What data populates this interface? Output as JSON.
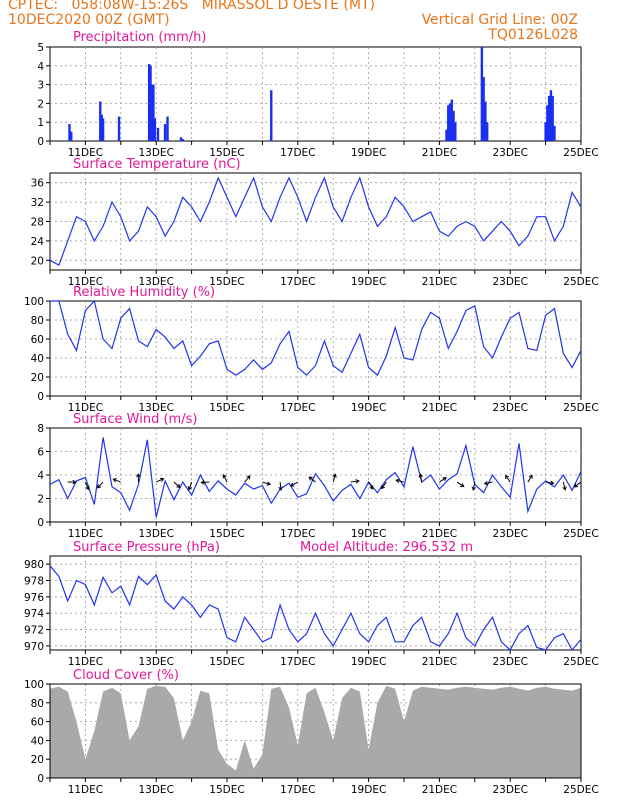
{
  "header": {
    "line1": "CPTEC:   058:08W-15:26S   MIRASSOL D OESTE (MT)",
    "date": "10DEC2020 00Z (GMT)",
    "grid_note": "Vertical Grid Line: 00Z",
    "code": "TQ0126L028"
  },
  "colors": {
    "line": "#2233ee",
    "bar": "#1a2ff0",
    "cloud": "#a9a9a9",
    "title": "#e0179a",
    "header": "#e8751a"
  },
  "chart_data": [
    {
      "type": "bar",
      "title": "Precipitation (mm/h)",
      "x_tick_labels": [
        "11DEC",
        "13DEC",
        "15DEC",
        "17DEC",
        "19DEC",
        "21DEC",
        "23DEC",
        "25DEC"
      ],
      "ylim": [
        0,
        5
      ],
      "y_ticks": [
        0,
        1,
        2,
        3,
        4,
        5
      ],
      "grid": true,
      "x_unit": "day (10DEC 00Z = 0)",
      "bars": [
        [
          0.55,
          0.9
        ],
        [
          0.6,
          0.5
        ],
        [
          1.42,
          2.1
        ],
        [
          1.46,
          1.4
        ],
        [
          1.5,
          1.2
        ],
        [
          1.95,
          1.3
        ],
        [
          2.8,
          4.1
        ],
        [
          2.84,
          4.0
        ],
        [
          2.88,
          3.0
        ],
        [
          2.92,
          3.0
        ],
        [
          2.96,
          1.2
        ],
        [
          3.05,
          0.7
        ],
        [
          3.25,
          0.9
        ],
        [
          3.32,
          1.3
        ],
        [
          3.7,
          0.2
        ],
        [
          3.75,
          0.1
        ],
        [
          6.25,
          2.7
        ],
        [
          11.2,
          0.6
        ],
        [
          11.25,
          1.9
        ],
        [
          11.3,
          2.0
        ],
        [
          11.35,
          2.2
        ],
        [
          11.4,
          1.6
        ],
        [
          11.45,
          1.0
        ],
        [
          12.2,
          5.0
        ],
        [
          12.25,
          3.4
        ],
        [
          12.3,
          2.1
        ],
        [
          12.35,
          1.0
        ],
        [
          14.0,
          1.0
        ],
        [
          14.05,
          1.9
        ],
        [
          14.1,
          2.4
        ],
        [
          14.15,
          2.7
        ],
        [
          14.2,
          2.4
        ],
        [
          14.25,
          0.8
        ]
      ]
    },
    {
      "type": "line",
      "title": "Surface Temperature (nC)",
      "x_tick_labels": [
        "11DEC",
        "13DEC",
        "15DEC",
        "17DEC",
        "19DEC",
        "21DEC",
        "23DEC",
        "25DEC"
      ],
      "ylim": [
        18,
        38
      ],
      "y_ticks": [
        20,
        24,
        28,
        32,
        36
      ],
      "grid": true,
      "x": [
        0,
        0.25,
        0.5,
        0.75,
        1,
        1.25,
        1.5,
        1.75,
        2,
        2.25,
        2.5,
        2.75,
        3,
        3.25,
        3.5,
        3.75,
        4,
        4.25,
        4.5,
        4.75,
        5,
        5.25,
        5.5,
        5.75,
        6,
        6.25,
        6.5,
        6.75,
        7,
        7.25,
        7.5,
        7.75,
        8,
        8.25,
        8.5,
        8.75,
        9,
        9.25,
        9.5,
        9.75,
        10,
        10.25,
        10.5,
        10.75,
        11,
        11.25,
        11.5,
        11.75,
        12,
        12.25,
        12.5,
        12.75,
        13,
        13.25,
        13.5,
        13.75,
        14,
        14.25,
        14.5,
        14.75,
        15
      ],
      "values": [
        20,
        19,
        24,
        29,
        28,
        24,
        27,
        32,
        29,
        24,
        26,
        31,
        29,
        25,
        28,
        33,
        31,
        28,
        32,
        37,
        33,
        29,
        33,
        37,
        31,
        28,
        33,
        37,
        33,
        28,
        33,
        37,
        31,
        28,
        33,
        37,
        31,
        27,
        29,
        33,
        31,
        28,
        29,
        30,
        26,
        25,
        27,
        28,
        27,
        24,
        26,
        28,
        26,
        23,
        25,
        29,
        29,
        24,
        27,
        34,
        31
      ]
    },
    {
      "type": "line",
      "title": "Relative Humidity (%)",
      "x_tick_labels": [
        "11DEC",
        "13DEC",
        "15DEC",
        "17DEC",
        "19DEC",
        "21DEC",
        "23DEC",
        "25DEC"
      ],
      "ylim": [
        0,
        100
      ],
      "y_ticks": [
        0,
        20,
        40,
        60,
        80,
        100
      ],
      "grid": true,
      "x": [
        0,
        0.25,
        0.5,
        0.75,
        1,
        1.25,
        1.5,
        1.75,
        2,
        2.25,
        2.5,
        2.75,
        3,
        3.25,
        3.5,
        3.75,
        4,
        4.25,
        4.5,
        4.75,
        5,
        5.25,
        5.5,
        5.75,
        6,
        6.25,
        6.5,
        6.75,
        7,
        7.25,
        7.5,
        7.75,
        8,
        8.25,
        8.5,
        8.75,
        9,
        9.25,
        9.5,
        9.75,
        10,
        10.25,
        10.5,
        10.75,
        11,
        11.25,
        11.5,
        11.75,
        12,
        12.25,
        12.5,
        12.75,
        13,
        13.25,
        13.5,
        13.75,
        14,
        14.25,
        14.5,
        14.75,
        15
      ],
      "values": [
        100,
        100,
        65,
        48,
        90,
        100,
        60,
        50,
        82,
        92,
        58,
        52,
        70,
        62,
        50,
        58,
        32,
        42,
        55,
        58,
        28,
        22,
        28,
        38,
        28,
        35,
        55,
        68,
        30,
        22,
        32,
        58,
        32,
        25,
        45,
        65,
        30,
        22,
        42,
        72,
        40,
        38,
        70,
        88,
        82,
        50,
        68,
        90,
        95,
        52,
        40,
        62,
        82,
        88,
        50,
        48,
        85,
        92,
        45,
        30,
        48
      ]
    },
    {
      "type": "line",
      "title": "Surface Wind (m/s)",
      "x_tick_labels": [
        "11DEC",
        "13DEC",
        "15DEC",
        "17DEC",
        "19DEC",
        "21DEC",
        "23DEC",
        "25DEC"
      ],
      "ylim": [
        0,
        8
      ],
      "y_ticks": [
        0,
        2,
        4,
        6,
        8
      ],
      "grid": true,
      "x": [
        0,
        0.25,
        0.5,
        0.75,
        1,
        1.25,
        1.5,
        1.75,
        2,
        2.25,
        2.5,
        2.75,
        3,
        3.25,
        3.5,
        3.75,
        4,
        4.25,
        4.5,
        4.75,
        5,
        5.25,
        5.5,
        5.75,
        6,
        6.25,
        6.5,
        6.75,
        7,
        7.25,
        7.5,
        7.75,
        8,
        8.25,
        8.5,
        8.75,
        9,
        9.25,
        9.5,
        9.75,
        10,
        10.25,
        10.5,
        10.75,
        11,
        11.25,
        11.5,
        11.75,
        12,
        12.25,
        12.5,
        12.75,
        13,
        13.25,
        13.5,
        13.75,
        14,
        14.25,
        14.5,
        14.75,
        15
      ],
      "values": [
        3.2,
        3.6,
        2.0,
        3.5,
        3.8,
        1.5,
        7.2,
        3.0,
        2.5,
        1.0,
        3.2,
        7.0,
        0.4,
        3.5,
        1.9,
        3.4,
        2.3,
        4.0,
        2.6,
        3.5,
        2.8,
        2.3,
        3.3,
        2.8,
        3.1,
        1.6,
        2.8,
        3.3,
        2.1,
        2.4,
        4.1,
        3.1,
        1.8,
        2.7,
        3.2,
        2.0,
        3.4,
        2.5,
        3.6,
        4.2,
        3.0,
        6.4,
        3.4,
        4.0,
        2.8,
        3.6,
        4.1,
        6.5,
        3.2,
        2.5,
        4.0,
        3.0,
        2.1,
        6.7,
        0.9,
        2.8,
        3.5,
        3.0,
        4.0,
        2.7,
        4.3
      ],
      "arrows_x": [
        0.5,
        1.0,
        1.5,
        2.0,
        2.5,
        3.0,
        3.5,
        4.0,
        4.5,
        5.0,
        5.5,
        6.0,
        6.5,
        7.0,
        7.5,
        8.0,
        8.5,
        9.0,
        9.5,
        10.0,
        10.5,
        11.0,
        11.5,
        12.0,
        12.5,
        13.0,
        13.5,
        14.0,
        14.5,
        15.0
      ]
    },
    {
      "type": "line",
      "title": "Surface Pressure (hPa)",
      "annotation": "Model Altitude: 296.532 m",
      "x_tick_labels": [
        "11DEC",
        "13DEC",
        "15DEC",
        "17DEC",
        "19DEC",
        "21DEC",
        "23DEC",
        "25DEC"
      ],
      "ylim": [
        969.5,
        981
      ],
      "y_ticks": [
        970,
        972,
        974,
        976,
        978,
        980
      ],
      "grid": true,
      "x": [
        0,
        0.25,
        0.5,
        0.75,
        1,
        1.25,
        1.5,
        1.75,
        2,
        2.25,
        2.5,
        2.75,
        3,
        3.25,
        3.5,
        3.75,
        4,
        4.25,
        4.5,
        4.75,
        5,
        5.25,
        5.5,
        5.75,
        6,
        6.25,
        6.5,
        6.75,
        7,
        7.25,
        7.5,
        7.75,
        8,
        8.25,
        8.5,
        8.75,
        9,
        9.25,
        9.5,
        9.75,
        10,
        10.25,
        10.5,
        10.75,
        11,
        11.25,
        11.5,
        11.75,
        12,
        12.25,
        12.5,
        12.75,
        13,
        13.25,
        13.5,
        13.75,
        14,
        14.25,
        14.5,
        14.75,
        15
      ],
      "values": [
        979.8,
        978.5,
        975.5,
        978.0,
        977.5,
        975.0,
        978.4,
        976.5,
        977.3,
        975.0,
        978.5,
        977.5,
        978.7,
        975.5,
        974.5,
        976.0,
        975.0,
        973.5,
        975.0,
        974.5,
        971.0,
        970.5,
        973.5,
        972.0,
        970.5,
        971.0,
        975.0,
        972.0,
        970.5,
        971.5,
        974.0,
        971.5,
        970.0,
        972.0,
        974.0,
        971.5,
        970.5,
        972.5,
        973.5,
        970.5,
        970.5,
        972.5,
        973.5,
        970.5,
        970.0,
        971.5,
        974.0,
        971.0,
        970.0,
        972.0,
        973.5,
        970.5,
        969.5,
        971.5,
        972.5,
        969.8,
        969.5,
        971.0,
        971.5,
        969.5,
        970.8
      ]
    },
    {
      "type": "area",
      "title": "Cloud Cover (%)",
      "x_tick_labels": [
        "11DEC",
        "13DEC",
        "15DEC",
        "17DEC",
        "19DEC",
        "21DEC",
        "23DEC",
        "25DEC"
      ],
      "ylim": [
        0,
        100
      ],
      "y_ticks": [
        0,
        20,
        40,
        60,
        80,
        100
      ],
      "grid": true,
      "x": [
        0,
        0.25,
        0.5,
        0.75,
        1,
        1.25,
        1.5,
        1.75,
        2,
        2.25,
        2.5,
        2.75,
        3,
        3.25,
        3.5,
        3.75,
        4,
        4.25,
        4.5,
        4.75,
        5,
        5.25,
        5.5,
        5.75,
        6,
        6.25,
        6.5,
        6.75,
        7,
        7.25,
        7.5,
        7.75,
        8,
        8.25,
        8.5,
        8.75,
        9,
        9.25,
        9.5,
        9.75,
        10,
        10.25,
        10.5,
        10.75,
        11,
        11.25,
        11.5,
        11.75,
        12,
        12.25,
        12.5,
        12.75,
        13,
        13.25,
        13.5,
        13.75,
        14,
        14.25,
        14.5,
        14.75,
        15
      ],
      "values": [
        95,
        97,
        92,
        60,
        20,
        50,
        92,
        96,
        90,
        40,
        55,
        95,
        98,
        97,
        85,
        40,
        60,
        93,
        90,
        30,
        15,
        8,
        40,
        10,
        25,
        95,
        97,
        75,
        35,
        90,
        96,
        70,
        40,
        85,
        96,
        92,
        30,
        80,
        98,
        95,
        60,
        93,
        97,
        96,
        95,
        94,
        96,
        97,
        96,
        95,
        94,
        96,
        97,
        95,
        93,
        96,
        97,
        95,
        94,
        93,
        96
      ]
    }
  ]
}
